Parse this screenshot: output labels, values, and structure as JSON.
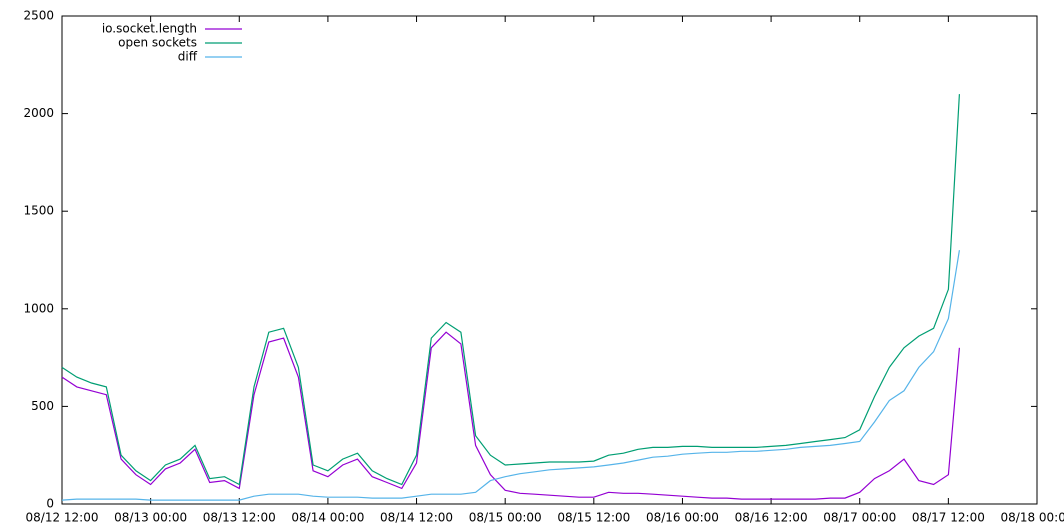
{
  "chart_data": {
    "type": "line",
    "x": [
      "08/12 12:00",
      "08/12 14:00",
      "08/12 16:00",
      "08/12 18:00",
      "08/12 20:00",
      "08/12 22:00",
      "08/13 00:00",
      "08/13 02:00",
      "08/13 04:00",
      "08/13 06:00",
      "08/13 08:00",
      "08/13 10:00",
      "08/13 12:00",
      "08/13 14:00",
      "08/13 16:00",
      "08/13 18:00",
      "08/13 20:00",
      "08/13 22:00",
      "08/14 00:00",
      "08/14 02:00",
      "08/14 04:00",
      "08/14 06:00",
      "08/14 08:00",
      "08/14 10:00",
      "08/14 12:00",
      "08/14 14:00",
      "08/14 16:00",
      "08/14 18:00",
      "08/14 20:00",
      "08/14 22:00",
      "08/15 00:00",
      "08/15 02:00",
      "08/15 04:00",
      "08/15 06:00",
      "08/15 08:00",
      "08/15 10:00",
      "08/15 12:00",
      "08/15 14:00",
      "08/15 16:00",
      "08/15 18:00",
      "08/15 20:00",
      "08/15 22:00",
      "08/16 00:00",
      "08/16 02:00",
      "08/16 04:00",
      "08/16 06:00",
      "08/16 08:00",
      "08/16 10:00",
      "08/16 12:00",
      "08/16 14:00",
      "08/16 16:00",
      "08/16 18:00",
      "08/16 20:00",
      "08/16 22:00",
      "08/17 00:00",
      "08/17 02:00",
      "08/17 04:00",
      "08/17 06:00",
      "08/17 08:00",
      "08/17 10:00",
      "08/17 12:00",
      "08/17 13:30"
    ],
    "series": [
      {
        "name": "io.socket.length",
        "color": "#9400d3",
        "values": [
          650,
          600,
          580,
          560,
          230,
          150,
          100,
          180,
          210,
          280,
          110,
          120,
          80,
          560,
          830,
          850,
          650,
          170,
          140,
          200,
          230,
          140,
          110,
          80,
          210,
          800,
          880,
          820,
          300,
          150,
          70,
          55,
          50,
          45,
          40,
          35,
          35,
          60,
          55,
          55,
          50,
          45,
          40,
          35,
          30,
          30,
          25,
          25,
          25,
          25,
          25,
          25,
          30,
          30,
          60,
          130,
          170,
          230,
          120,
          100,
          150,
          800
        ]
      },
      {
        "name": "open sockets",
        "color": "#009e73",
        "values": [
          700,
          650,
          620,
          600,
          250,
          170,
          120,
          200,
          230,
          300,
          130,
          140,
          100,
          600,
          880,
          900,
          700,
          200,
          170,
          230,
          260,
          170,
          130,
          100,
          250,
          850,
          930,
          880,
          350,
          250,
          200,
          205,
          210,
          215,
          215,
          215,
          220,
          250,
          260,
          280,
          290,
          290,
          295,
          295,
          290,
          290,
          290,
          290,
          295,
          300,
          310,
          320,
          330,
          340,
          380,
          550,
          700,
          800,
          860,
          900,
          1100,
          2100
        ]
      },
      {
        "name": "diff",
        "color": "#56b4e9",
        "values": [
          20,
          25,
          25,
          25,
          25,
          25,
          20,
          20,
          20,
          20,
          20,
          20,
          20,
          40,
          50,
          50,
          50,
          40,
          35,
          35,
          35,
          30,
          30,
          30,
          40,
          50,
          50,
          50,
          60,
          120,
          140,
          155,
          165,
          175,
          180,
          185,
          190,
          200,
          210,
          225,
          240,
          245,
          255,
          260,
          265,
          265,
          270,
          270,
          275,
          280,
          290,
          295,
          300,
          310,
          320,
          420,
          530,
          580,
          700,
          780,
          950,
          1300
        ]
      }
    ],
    "xlim": [
      "08/12 12:00",
      "08/18 00:00"
    ],
    "xticks": [
      "08/12 12:00",
      "08/13 00:00",
      "08/13 12:00",
      "08/14 00:00",
      "08/14 12:00",
      "08/15 00:00",
      "08/15 12:00",
      "08/16 00:00",
      "08/16 12:00",
      "08/17 00:00",
      "08/17 12:00",
      "08/18 00:00"
    ],
    "ylim": [
      0,
      2500
    ],
    "yticks": [
      0,
      500,
      1000,
      1500,
      2000,
      2500
    ],
    "legend": "top-left"
  }
}
